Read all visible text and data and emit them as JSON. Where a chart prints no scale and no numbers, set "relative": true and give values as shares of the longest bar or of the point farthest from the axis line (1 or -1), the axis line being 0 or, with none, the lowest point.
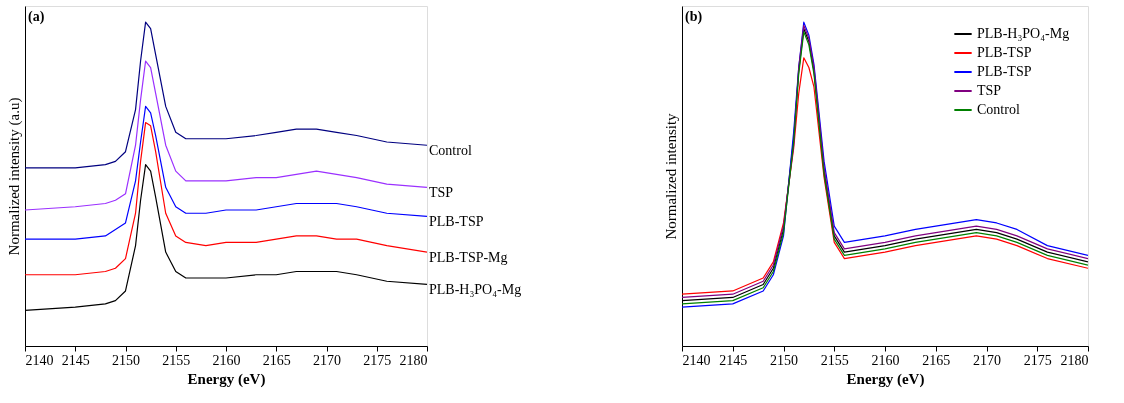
{
  "chart_data": [
    {
      "type": "line",
      "title": "(a)",
      "xlabel": "Energy (eV)",
      "ylabel": "Normalized intensity (a.u)",
      "relative": true,
      "legend": false,
      "grid": false,
      "x": [
        2140,
        2145,
        2148,
        2149,
        2150,
        2151,
        2151.5,
        2152,
        2152.5,
        2153,
        2154,
        2155,
        2156,
        2158,
        2160,
        2163,
        2165,
        2167,
        2169,
        2171,
        2173,
        2176,
        2180
      ],
      "xlim": [
        2140,
        2180
      ],
      "xticks": [
        2140,
        2145,
        2150,
        2155,
        2160,
        2165,
        2170,
        2175,
        2180
      ],
      "series": [
        {
          "name": "Control",
          "color": "#000080",
          "values": [
            0.55,
            0.55,
            0.56,
            0.57,
            0.6,
            0.73,
            0.88,
            1.0,
            0.98,
            0.9,
            0.74,
            0.66,
            0.64,
            0.64,
            0.64,
            0.65,
            0.66,
            0.67,
            0.67,
            0.66,
            0.65,
            0.63,
            0.62
          ]
        },
        {
          "name": "TSP",
          "color": "#9b30ff",
          "values": [
            0.42,
            0.43,
            0.44,
            0.45,
            0.47,
            0.62,
            0.76,
            0.88,
            0.86,
            0.78,
            0.62,
            0.54,
            0.51,
            0.51,
            0.51,
            0.52,
            0.52,
            0.53,
            0.54,
            0.53,
            0.52,
            0.5,
            0.49
          ]
        },
        {
          "name": "PLB-TSP",
          "color": "#0000ff",
          "values": [
            0.33,
            0.33,
            0.34,
            0.36,
            0.38,
            0.51,
            0.63,
            0.74,
            0.72,
            0.65,
            0.49,
            0.43,
            0.41,
            0.41,
            0.42,
            0.42,
            0.43,
            0.44,
            0.44,
            0.44,
            0.43,
            0.41,
            0.4
          ]
        },
        {
          "name": "PLB-TSP-Mg",
          "color": "#ff0000",
          "values": [
            0.22,
            0.22,
            0.23,
            0.24,
            0.27,
            0.41,
            0.57,
            0.69,
            0.68,
            0.6,
            0.41,
            0.34,
            0.32,
            0.31,
            0.32,
            0.32,
            0.33,
            0.34,
            0.34,
            0.33,
            0.33,
            0.31,
            0.29
          ]
        },
        {
          "name": "PLB-H₃PO₄-Mg",
          "color": "#000000",
          "values": [
            0.11,
            0.12,
            0.13,
            0.14,
            0.17,
            0.31,
            0.45,
            0.56,
            0.54,
            0.46,
            0.29,
            0.23,
            0.21,
            0.21,
            0.21,
            0.22,
            0.22,
            0.23,
            0.23,
            0.23,
            0.22,
            0.2,
            0.19
          ]
        }
      ]
    },
    {
      "type": "line",
      "title": "(b)",
      "xlabel": "Energy (eV)",
      "ylabel": "Normalized intensity",
      "relative": true,
      "legend": "top right",
      "grid": false,
      "x": [
        2140,
        2145,
        2148,
        2149,
        2150,
        2151,
        2151.5,
        2152,
        2152.5,
        2153,
        2154,
        2155,
        2156,
        2158,
        2160,
        2163,
        2165,
        2167,
        2169,
        2171,
        2173,
        2176,
        2180
      ],
      "xlim": [
        2140,
        2180
      ],
      "xticks": [
        2140,
        2145,
        2150,
        2155,
        2160,
        2165,
        2170,
        2175,
        2180
      ],
      "series": [
        {
          "name": "PLB-H₃PO₄-Mg",
          "color": "#000000",
          "values": [
            0.14,
            0.15,
            0.19,
            0.24,
            0.36,
            0.64,
            0.85,
            0.98,
            0.94,
            0.85,
            0.54,
            0.34,
            0.29,
            0.3,
            0.31,
            0.33,
            0.34,
            0.35,
            0.36,
            0.35,
            0.33,
            0.29,
            0.26
          ]
        },
        {
          "name": "PLB-TSP",
          "color": "#ff0000",
          "values": [
            0.16,
            0.17,
            0.21,
            0.26,
            0.38,
            0.61,
            0.78,
            0.89,
            0.86,
            0.8,
            0.52,
            0.32,
            0.27,
            0.28,
            0.29,
            0.31,
            0.32,
            0.33,
            0.34,
            0.33,
            0.31,
            0.27,
            0.24
          ]
        },
        {
          "name": "PLB-TSP",
          "color": "#0000ff",
          "values": [
            0.12,
            0.13,
            0.17,
            0.22,
            0.34,
            0.66,
            0.86,
            1.0,
            0.96,
            0.87,
            0.57,
            0.37,
            0.32,
            0.33,
            0.34,
            0.36,
            0.37,
            0.38,
            0.39,
            0.38,
            0.36,
            0.31,
            0.28
          ]
        },
        {
          "name": "TSP",
          "color": "#800080",
          "values": [
            0.15,
            0.16,
            0.2,
            0.25,
            0.37,
            0.62,
            0.86,
            0.99,
            0.95,
            0.86,
            0.55,
            0.35,
            0.3,
            0.31,
            0.32,
            0.34,
            0.35,
            0.36,
            0.37,
            0.36,
            0.34,
            0.3,
            0.27
          ]
        },
        {
          "name": "Control",
          "color": "#008000",
          "values": [
            0.13,
            0.14,
            0.18,
            0.23,
            0.35,
            0.63,
            0.84,
            0.97,
            0.93,
            0.84,
            0.53,
            0.33,
            0.28,
            0.29,
            0.3,
            0.32,
            0.33,
            0.34,
            0.35,
            0.34,
            0.32,
            0.28,
            0.25
          ]
        }
      ]
    }
  ]
}
